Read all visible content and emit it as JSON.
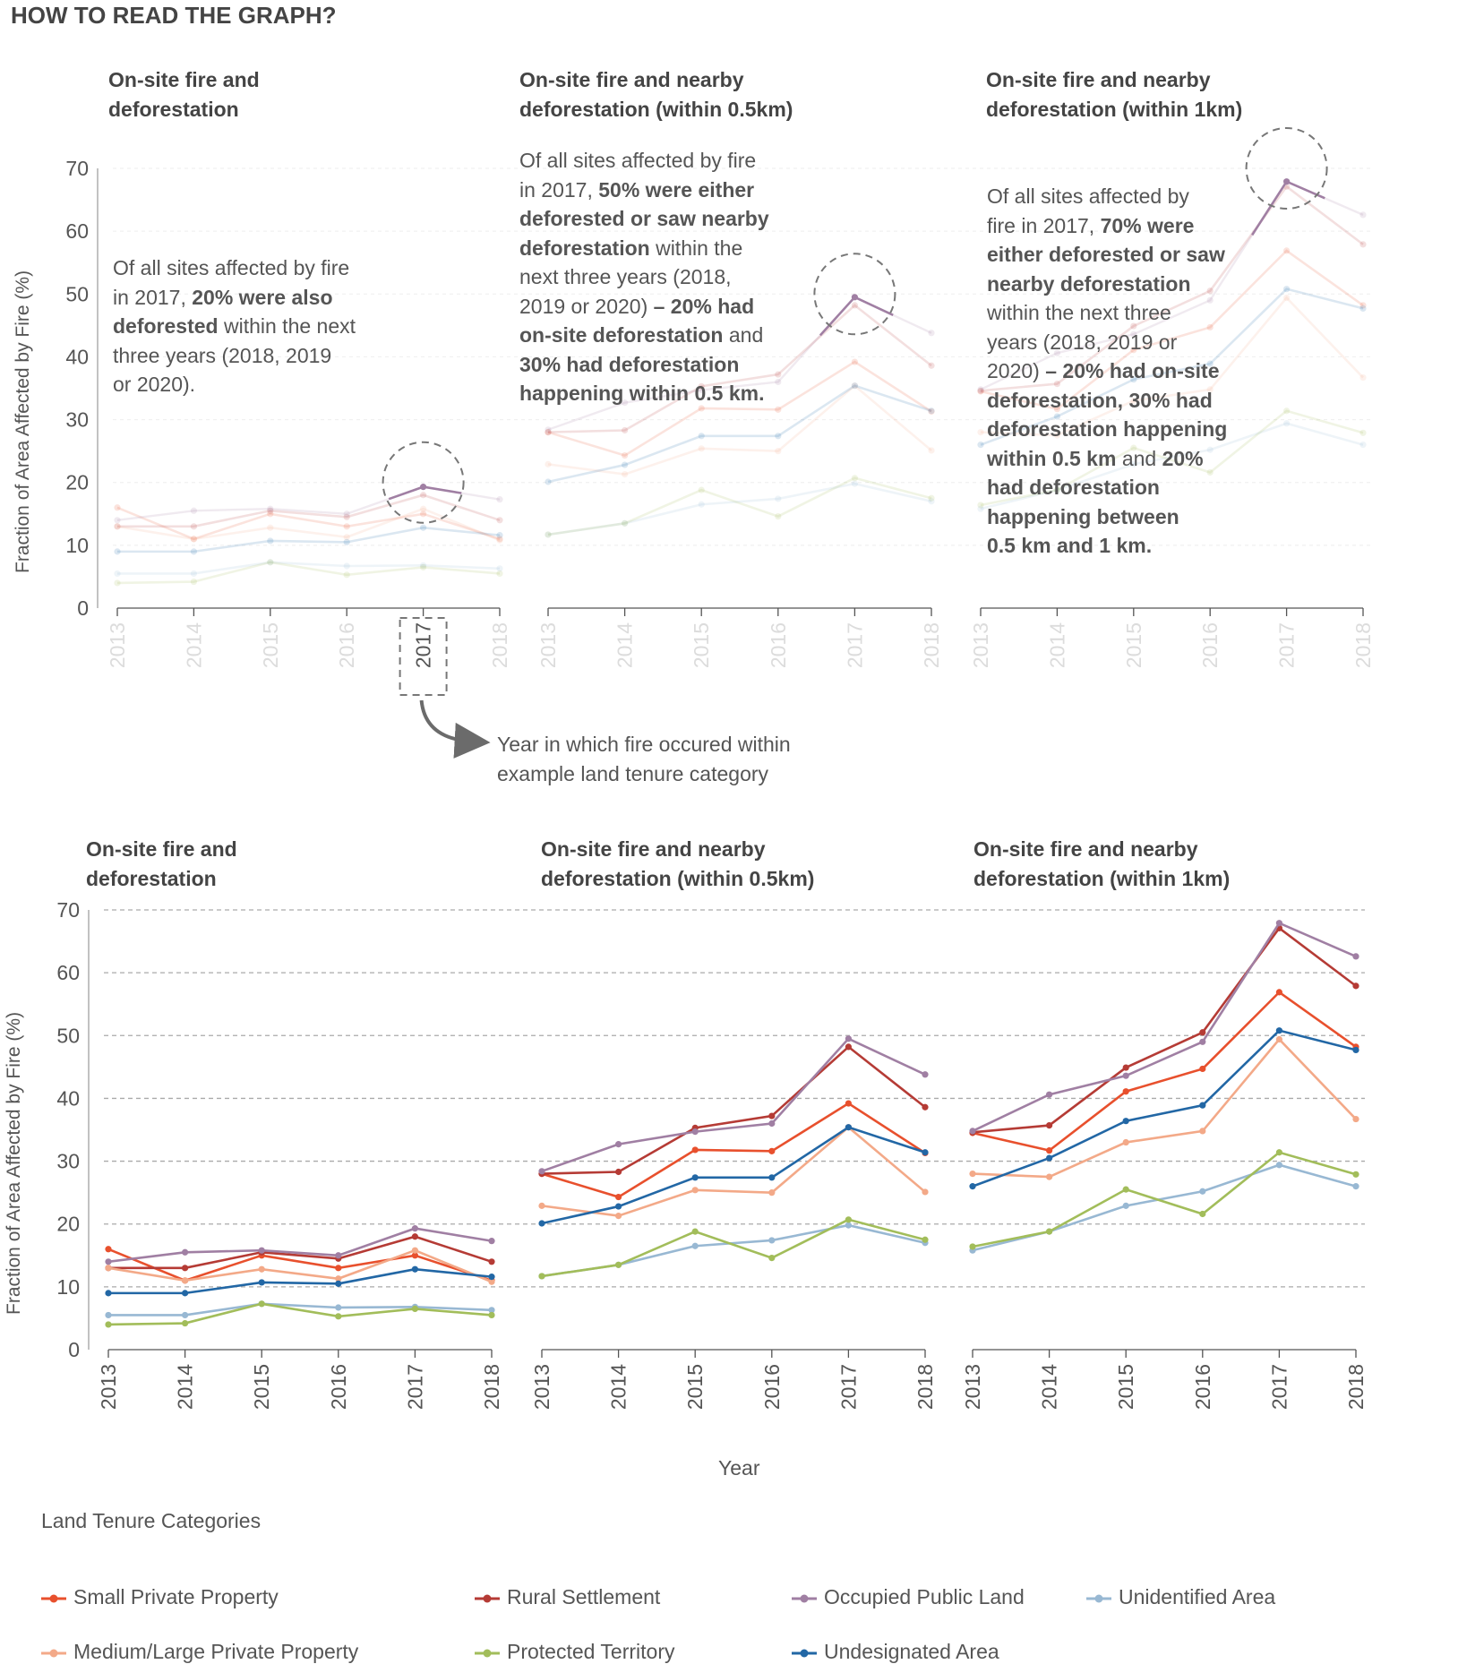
{
  "page": {
    "heading": "HOW TO READ THE GRAPH?",
    "panel_titles": [
      [
        "On-site fire and",
        "deforestation"
      ],
      [
        "On-site fire and nearby",
        "deforestation (within 0.5km)"
      ],
      [
        "On-site fire and nearby",
        "deforestation (within 1km)"
      ]
    ],
    "y_axis_label": "Fraction of Area Affected by Fire (%)",
    "x_axis_label": "Year",
    "arrow_note": [
      "Year in which fire occured within",
      "example land tenure category"
    ],
    "annotations": [
      [
        [
          {
            "t": "Of all sites affected by fire",
            "b": false
          }
        ],
        [
          {
            "t": "in 2017, ",
            "b": false
          },
          {
            "t": "20% were also",
            "b": true
          }
        ],
        [
          {
            "t": "deforested",
            "b": true
          },
          {
            "t": " within the next",
            "b": false
          }
        ],
        [
          {
            "t": "three years (2018, 2019",
            "b": false
          }
        ],
        [
          {
            "t": "or 2020).",
            "b": false
          }
        ]
      ],
      [
        [
          {
            "t": "Of all sites affected by fire",
            "b": false
          }
        ],
        [
          {
            "t": "in 2017, ",
            "b": false
          },
          {
            "t": "50% were either",
            "b": true
          }
        ],
        [
          {
            "t": "deforested or saw nearby",
            "b": true
          }
        ],
        [
          {
            "t": "deforestation",
            "b": true
          },
          {
            "t": " within the",
            "b": false
          }
        ],
        [
          {
            "t": "next three years (2018,",
            "b": false
          }
        ],
        [
          {
            "t": "2019 or 2020) ",
            "b": false
          },
          {
            "t": "– 20% had",
            "b": true
          }
        ],
        [
          {
            "t": "on-site deforestation",
            "b": true
          },
          {
            "t": " and",
            "b": false
          }
        ],
        [
          {
            "t": "30% had deforestation",
            "b": true
          }
        ],
        [
          {
            "t": "happening within 0.5 km.",
            "b": true
          }
        ]
      ],
      [
        [
          {
            "t": "Of all sites affected by",
            "b": false
          }
        ],
        [
          {
            "t": "fire in 2017, ",
            "b": false
          },
          {
            "t": "70% were",
            "b": true
          }
        ],
        [
          {
            "t": "either deforested or saw",
            "b": true
          }
        ],
        [
          {
            "t": "nearby deforestation",
            "b": true
          }
        ],
        [
          {
            "t": "within the next three",
            "b": false
          }
        ],
        [
          {
            "t": "years (2018, 2019 or",
            "b": false
          }
        ],
        [
          {
            "t": "2020) ",
            "b": false
          },
          {
            "t": "– 20% had on-site",
            "b": true
          }
        ],
        [
          {
            "t": "deforestation, 30% had",
            "b": true
          }
        ],
        [
          {
            "t": "deforestation happening",
            "b": true
          }
        ],
        [
          {
            "t": "within 0.5 km",
            "b": true
          },
          {
            "t": " and ",
            "b": false
          },
          {
            "t": "20%",
            "b": true
          }
        ],
        [
          {
            "t": "had deforestation",
            "b": true
          }
        ],
        [
          {
            "t": "happening between",
            "b": true
          }
        ],
        [
          {
            "t": "0.5 km and 1 km.",
            "b": true
          }
        ]
      ]
    ],
    "highlight_year": "2017",
    "legend_title": "Land Tenure Categories"
  },
  "chart_data": {
    "type": "line",
    "x": [
      "2013",
      "2014",
      "2015",
      "2016",
      "2017",
      "2018"
    ],
    "y_ticks": [
      "0",
      "10",
      "20",
      "30",
      "40",
      "50",
      "60",
      "70"
    ],
    "ylim": [
      0,
      70
    ],
    "grid": true,
    "legend_position": "bottom",
    "series_order": [
      "Small Private Property",
      "Rural Settlement",
      "Occupied Public Land",
      "Unidentified Area",
      "Medium/Large Private Property",
      "Protected Territory",
      "Undesignated Area"
    ],
    "colors": {
      "Small Private Property": "#e8502d",
      "Rural Settlement": "#b53b35",
      "Occupied Public Land": "#a07fa3",
      "Unidentified Area": "#98b8d3",
      "Medium/Large Private Property": "#f3a988",
      "Protected Territory": "#a2bd5a",
      "Undesignated Area": "#2267a5"
    },
    "panels": [
      {
        "Small Private Property": [
          16,
          11,
          15,
          13,
          15,
          11
        ],
        "Rural Settlement": [
          13,
          13,
          15.5,
          14.5,
          18,
          14
        ],
        "Occupied Public Land": [
          14,
          15.5,
          15.8,
          15,
          19.3,
          17.3
        ],
        "Unidentified Area": [
          5.5,
          5.5,
          7.3,
          6.7,
          6.8,
          6.3
        ],
        "Medium/Large Private Property": [
          13,
          11,
          12.8,
          11.3,
          15.8,
          10.8
        ],
        "Protected Territory": [
          4,
          4.2,
          7.3,
          5.3,
          6.5,
          5.5
        ],
        "Undesignated Area": [
          9,
          9,
          10.7,
          10.5,
          12.8,
          11.6
        ]
      },
      {
        "Small Private Property": [
          28,
          24.3,
          31.8,
          31.6,
          39.2,
          31.3
        ],
        "Rural Settlement": [
          28,
          28.3,
          35.3,
          37.2,
          48.2,
          38.6
        ],
        "Occupied Public Land": [
          28.4,
          32.7,
          34.7,
          36,
          49.5,
          43.8
        ],
        "Unidentified Area": [
          11.7,
          13.5,
          16.5,
          17.4,
          19.8,
          17
        ],
        "Medium/Large Private Property": [
          22.9,
          21.3,
          25.4,
          25,
          35.4,
          25.1
        ],
        "Protected Territory": [
          11.7,
          13.5,
          18.8,
          14.6,
          20.7,
          17.5
        ],
        "Undesignated Area": [
          20.1,
          22.8,
          27.4,
          27.4,
          35.4,
          31.4
        ]
      },
      {
        "Small Private Property": [
          34.5,
          31.7,
          41.1,
          44.7,
          56.9,
          48.2
        ],
        "Rural Settlement": [
          34.6,
          35.7,
          44.9,
          50.5,
          67.1,
          57.9
        ],
        "Occupied Public Land": [
          34.8,
          40.6,
          43.6,
          49,
          67.9,
          62.6
        ],
        "Unidentified Area": [
          15.8,
          18.8,
          22.9,
          25.2,
          29.4,
          26
        ],
        "Medium/Large Private Property": [
          28,
          27.5,
          33,
          34.8,
          49.4,
          36.7
        ],
        "Protected Territory": [
          16.4,
          18.8,
          25.5,
          21.6,
          31.4,
          27.9
        ],
        "Undesignated Area": [
          26,
          30.5,
          36.4,
          38.9,
          50.8,
          47.7
        ]
      }
    ]
  }
}
